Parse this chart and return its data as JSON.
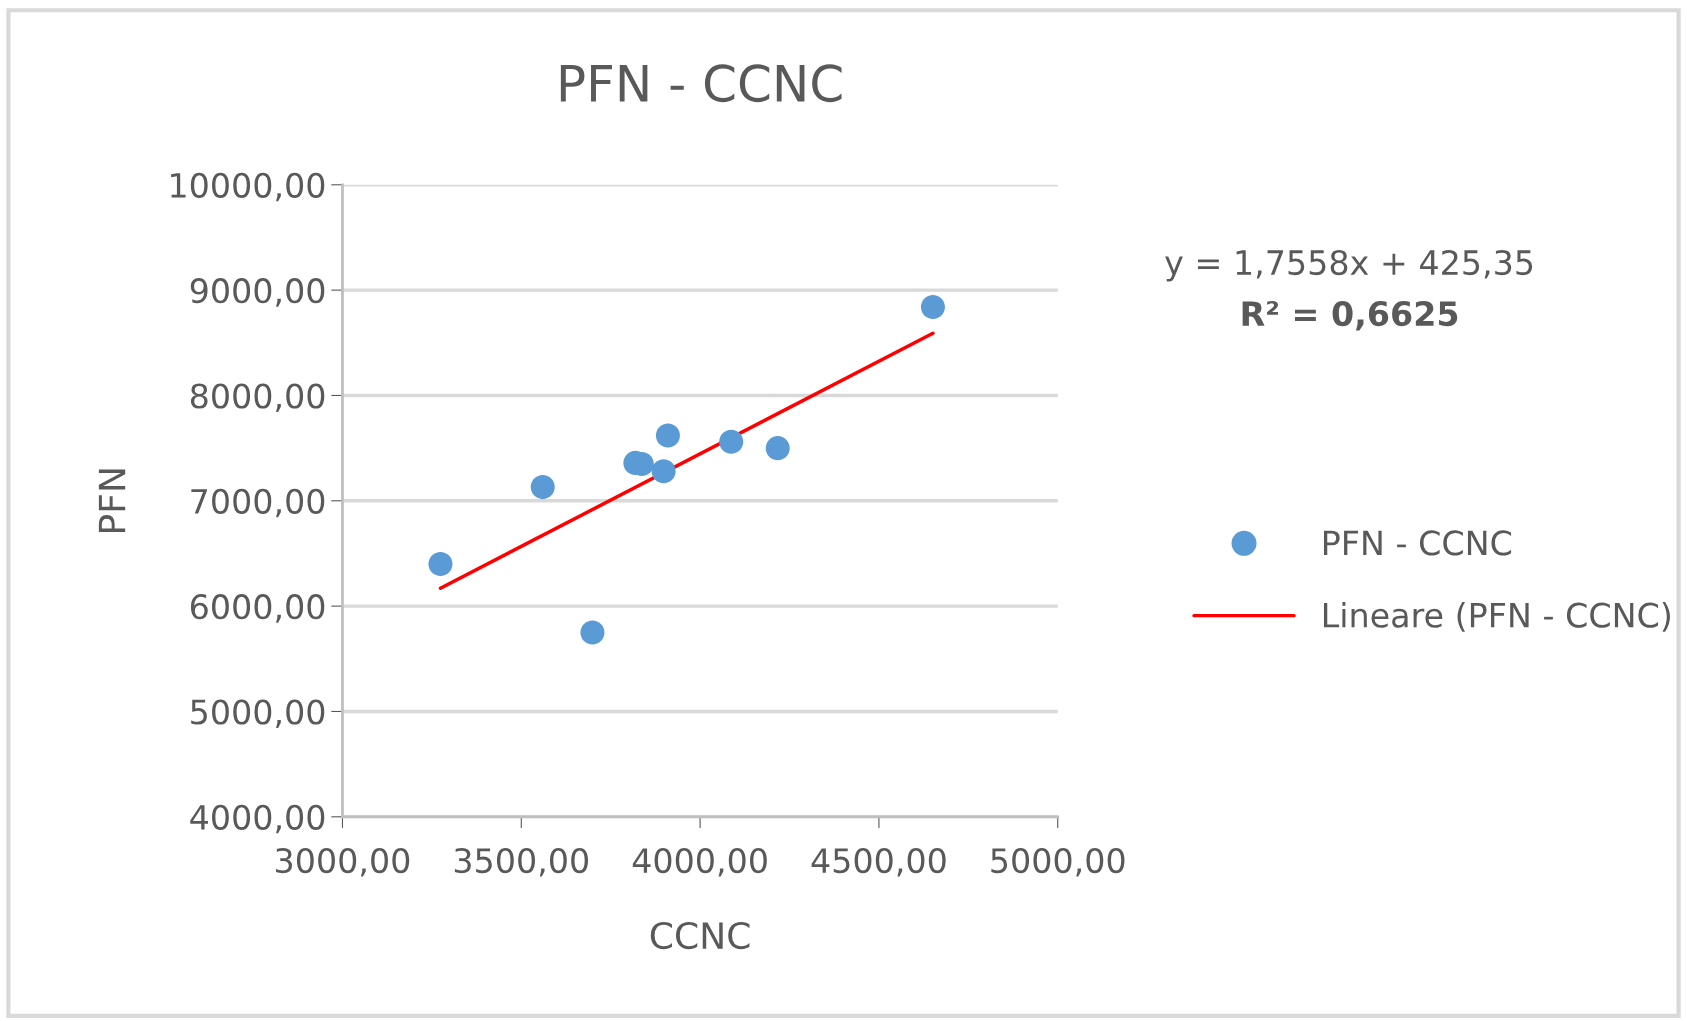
{
  "chart_data": {
    "type": "scatter",
    "title": "PFN - CCNC",
    "xlabel": "CCNC",
    "ylabel": "PFN",
    "xlim": [
      3000,
      5000
    ],
    "ylim": [
      4000,
      10000
    ],
    "xticks": [
      {
        "value": 3000,
        "label": "3000,00"
      },
      {
        "value": 3500,
        "label": "3500,00"
      },
      {
        "value": 4000,
        "label": "4000,00"
      },
      {
        "value": 4500,
        "label": "4500,00"
      },
      {
        "value": 5000,
        "label": "5000,00"
      }
    ],
    "yticks": [
      {
        "value": 4000,
        "label": "4000,00"
      },
      {
        "value": 5000,
        "label": "5000,00"
      },
      {
        "value": 6000,
        "label": "6000,00"
      },
      {
        "value": 7000,
        "label": "7000,00"
      },
      {
        "value": 8000,
        "label": "8000,00"
      },
      {
        "value": 9000,
        "label": "9000,00"
      },
      {
        "value": 10000,
        "label": "10000,00"
      }
    ],
    "grid": "y",
    "legend": "right",
    "series": [
      {
        "name": "PFN - CCNC",
        "marker": "circle",
        "color": "#5b9bd5",
        "x": [
          3274,
          3560,
          3699,
          3819,
          3837,
          3898,
          3910,
          4087,
          4217,
          4651
        ],
        "values": [
          6400,
          7130,
          5750,
          7360,
          7350,
          7280,
          7620,
          7560,
          7500,
          8840
        ]
      },
      {
        "name": "Lineare (PFN - CCNC)",
        "type": "line",
        "color": "#ff0000",
        "line_style": "solid",
        "x": [
          3274,
          4651
        ],
        "values": [
          6170,
          8590
        ]
      }
    ],
    "annotations": [
      "y = 1,7558x + 425,35",
      "R² = 0,6625"
    ]
  }
}
